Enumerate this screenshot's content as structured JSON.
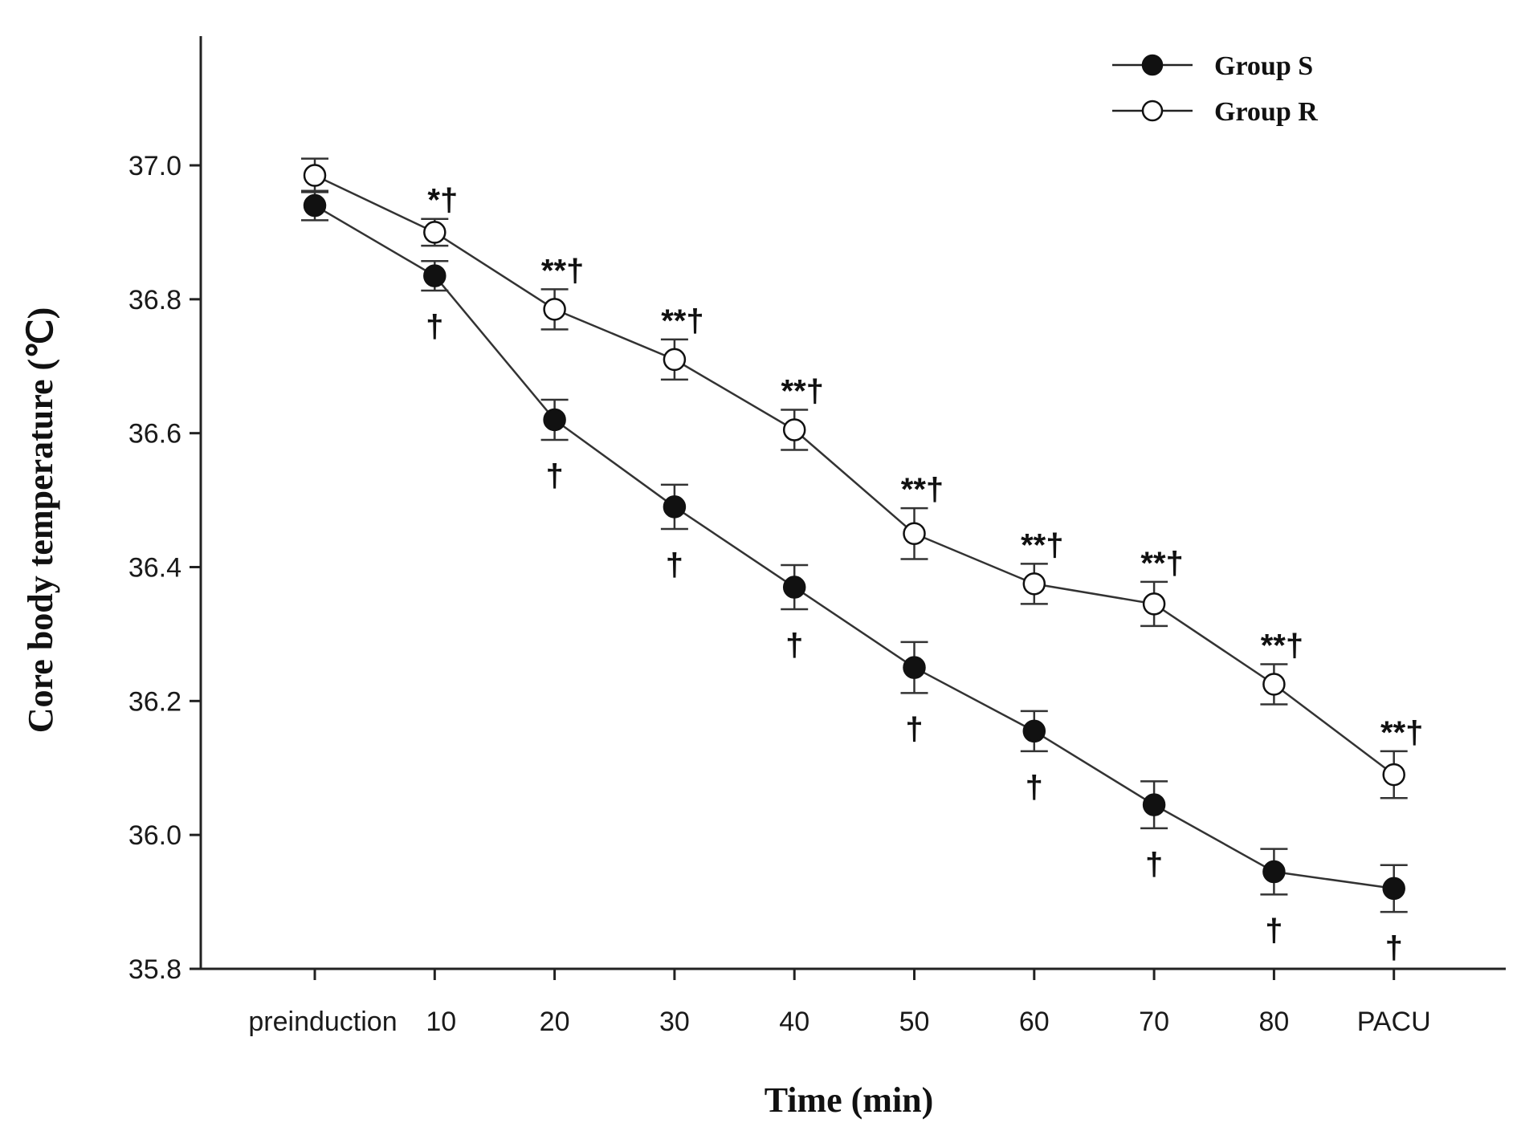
{
  "chart_data": {
    "type": "line",
    "xlabel": "Time (min)",
    "ylabel": "Core body temperature (℃)",
    "categories": [
      "preinduction",
      "10",
      "20",
      "30",
      "40",
      "50",
      "60",
      "70",
      "80",
      "PACU"
    ],
    "ylim": [
      35.8,
      37.2
    ],
    "yticks": [
      "35.8",
      "36.0",
      "36.2",
      "36.4",
      "36.6",
      "36.8",
      "37.0"
    ],
    "legend_position": "top-right",
    "grid": false,
    "series": [
      {
        "name": "Group S",
        "marker": "filled-circle",
        "values": [
          36.94,
          36.835,
          36.62,
          36.49,
          36.37,
          36.25,
          36.155,
          36.045,
          35.945,
          35.92
        ],
        "error": [
          0.022,
          0.022,
          0.03,
          0.033,
          0.033,
          0.038,
          0.03,
          0.035,
          0.034,
          0.035
        ],
        "annotations": [
          "",
          "†",
          "†",
          "†",
          "†",
          "†",
          "†",
          "†",
          "†",
          "†"
        ]
      },
      {
        "name": "Group R",
        "marker": "open-circle",
        "values": [
          36.985,
          36.9,
          36.785,
          36.71,
          36.605,
          36.45,
          36.375,
          36.345,
          36.225,
          36.09
        ],
        "error": [
          0.025,
          0.02,
          0.03,
          0.03,
          0.03,
          0.038,
          0.03,
          0.033,
          0.03,
          0.035
        ],
        "annotations": [
          "",
          "*†",
          "**†",
          "**†",
          "**†",
          "**†",
          "**†",
          "**†",
          "**†",
          "**†"
        ]
      }
    ]
  }
}
